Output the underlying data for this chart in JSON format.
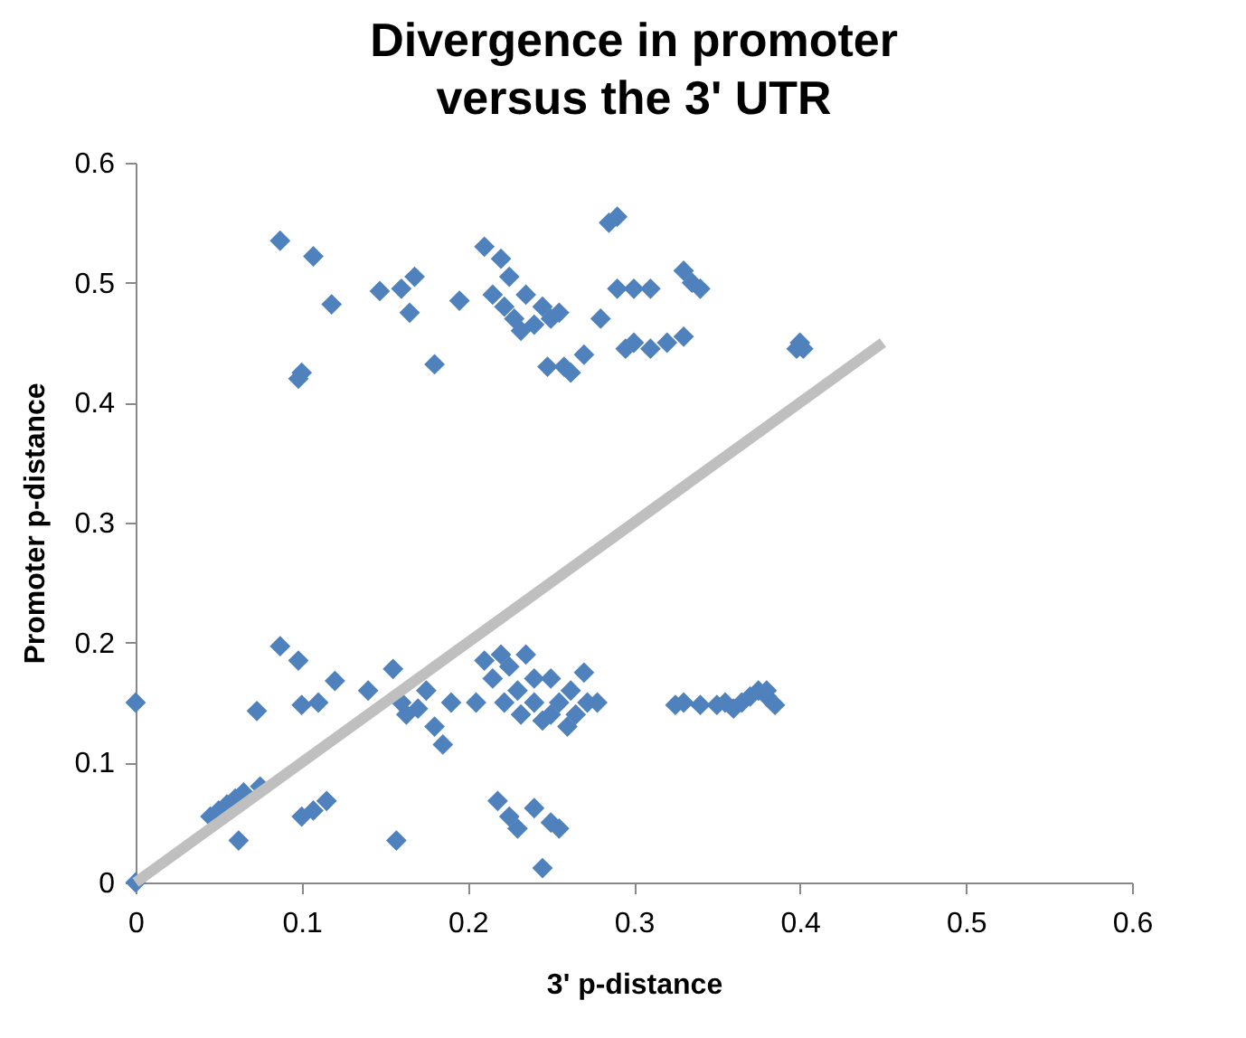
{
  "chart_data": {
    "type": "scatter",
    "title": "Divergence in promoter versus the 3' UTR",
    "xlabel": "3' p-distance",
    "ylabel": "Promoter p-distance",
    "xlim": [
      0,
      0.6
    ],
    "ylim": [
      0,
      0.6
    ],
    "xticks": [
      0,
      0.1,
      0.2,
      0.3,
      0.4,
      0.5,
      0.6
    ],
    "yticks": [
      0,
      0.1,
      0.2,
      0.3,
      0.4,
      0.5,
      0.6
    ],
    "grid": false,
    "series": [
      {
        "marker": "diamond",
        "color": "#4f81bd",
        "x": [
          0.087,
          0.107,
          0.1,
          0.098,
          0.118,
          0.147,
          0.16,
          0.168,
          0.165,
          0.18,
          0.195,
          0.21,
          0.215,
          0.22,
          0.222,
          0.225,
          0.228,
          0.232,
          0.235,
          0.24,
          0.245,
          0.25,
          0.255,
          0.248,
          0.258,
          0.262,
          0.27,
          0.28,
          0.285,
          0.29,
          0.29,
          0.3,
          0.3,
          0.31,
          0.31,
          0.32,
          0.33,
          0.33,
          0.335,
          0.34,
          0.398,
          0.4,
          0.402,
          0.295,
          0,
          0,
          0.045,
          0.05,
          0.055,
          0.06,
          0.065,
          0.075,
          0.062,
          0.073,
          0.087,
          0.098,
          0.1,
          0.1,
          0.107,
          0.11,
          0.115,
          0.12,
          0.14,
          0.155,
          0.157,
          0.16,
          0.163,
          0.17,
          0.175,
          0.18,
          0.185,
          0.19,
          0.205,
          0.21,
          0.215,
          0.22,
          0.222,
          0.225,
          0.23,
          0.232,
          0.235,
          0.24,
          0.24,
          0.245,
          0.25,
          0.25,
          0.255,
          0.26,
          0.262,
          0.265,
          0.27,
          0.272,
          0.278,
          0.218,
          0.225,
          0.23,
          0.24,
          0.245,
          0.25,
          0.255,
          0.325,
          0.33,
          0.34,
          0.35,
          0.355,
          0.36,
          0.365,
          0.37,
          0.375,
          0.38,
          0.385,
          0.38
        ],
        "values": [
          0.535,
          0.522,
          0.425,
          0.42,
          0.482,
          0.493,
          0.495,
          0.505,
          0.475,
          0.432,
          0.485,
          0.53,
          0.49,
          0.52,
          0.48,
          0.505,
          0.47,
          0.46,
          0.49,
          0.465,
          0.48,
          0.47,
          0.475,
          0.43,
          0.43,
          0.425,
          0.44,
          0.47,
          0.55,
          0.555,
          0.495,
          0.495,
          0.45,
          0.495,
          0.445,
          0.45,
          0.455,
          0.51,
          0.5,
          0.495,
          0.445,
          0.45,
          0.445,
          0.445,
          0.15,
          0,
          0.055,
          0.06,
          0.065,
          0.07,
          0.075,
          0.08,
          0.035,
          0.143,
          0.197,
          0.185,
          0.148,
          0.055,
          0.06,
          0.15,
          0.068,
          0.168,
          0.16,
          0.178,
          0.035,
          0.15,
          0.14,
          0.145,
          0.16,
          0.13,
          0.115,
          0.15,
          0.15,
          0.185,
          0.17,
          0.19,
          0.15,
          0.18,
          0.16,
          0.14,
          0.19,
          0.17,
          0.15,
          0.135,
          0.14,
          0.17,
          0.15,
          0.13,
          0.16,
          0.14,
          0.175,
          0.15,
          0.15,
          0.068,
          0.055,
          0.045,
          0.062,
          0.012,
          0.05,
          0.045,
          0.148,
          0.15,
          0.148,
          0.148,
          0.15,
          0.145,
          0.15,
          0.155,
          0.16,
          0.155,
          0.148,
          0.16
        ]
      },
      {
        "type": "line",
        "color": "#bfbfbf",
        "x": [
          0,
          0.45
        ],
        "values": [
          0,
          0.45
        ]
      }
    ]
  }
}
